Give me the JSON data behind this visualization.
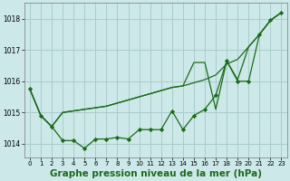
{
  "bg_color": "#cce8e8",
  "grid_color": "#aacccc",
  "line_color": "#1a6b1a",
  "marker_color": "#1a6b1a",
  "xlabel": "Graphe pression niveau de la mer (hPa)",
  "xlabel_fontsize": 7.5,
  "xlim": [
    -0.5,
    23.5
  ],
  "ylim": [
    1013.55,
    1018.5
  ],
  "yticks": [
    1014,
    1015,
    1016,
    1017,
    1018
  ],
  "xticks": [
    0,
    1,
    2,
    3,
    4,
    5,
    6,
    7,
    8,
    9,
    10,
    11,
    12,
    13,
    14,
    15,
    16,
    17,
    18,
    19,
    20,
    21,
    22,
    23
  ],
  "line_marked": [
    1015.75,
    1014.9,
    1014.55,
    1014.1,
    1014.1,
    1013.85,
    1014.15,
    1014.15,
    1014.2,
    1014.15,
    1014.45,
    1014.45,
    1014.45,
    1015.05,
    1014.45,
    1014.9,
    1015.1,
    1015.55,
    1016.65,
    1016.0,
    1016.0,
    1017.5,
    1017.95,
    1018.2
  ],
  "line_smooth": [
    1015.75,
    1014.9,
    1014.55,
    1015.0,
    1015.05,
    1015.1,
    1015.15,
    1015.2,
    1015.3,
    1015.4,
    1015.5,
    1015.6,
    1015.7,
    1015.8,
    1015.85,
    1015.95,
    1016.05,
    1016.2,
    1016.55,
    1016.7,
    1017.1,
    1017.5,
    1017.95,
    1018.2
  ],
  "line_kinked": [
    1015.75,
    1014.9,
    1014.55,
    1015.0,
    1015.05,
    1015.1,
    1015.15,
    1015.2,
    1015.3,
    1015.4,
    1015.5,
    1015.6,
    1015.7,
    1015.8,
    1015.85,
    1016.6,
    1016.6,
    1015.1,
    1016.65,
    1016.05,
    1017.1,
    1017.5,
    1017.95,
    1018.2
  ]
}
